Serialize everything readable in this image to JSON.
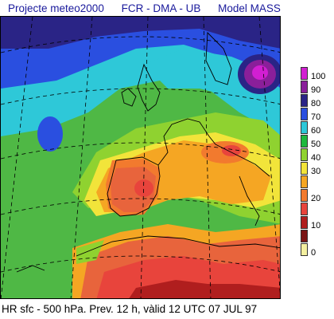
{
  "header": {
    "project": "Projecte meteo2000",
    "institution": "FCR - DMA - UB",
    "model": "Model  MASS"
  },
  "map": {
    "field": "relative humidity",
    "region": "Western Europe and North Africa",
    "colors": {
      "background_field": "#4fb845",
      "land_dry": "#e8643c",
      "coastline": "#000000",
      "graticule": "#000000"
    }
  },
  "legend": {
    "items": [
      {
        "label": "100",
        "color": "#d21fd2"
      },
      {
        "label": "90",
        "color": "#8a1f9a"
      },
      {
        "label": "80",
        "color": "#2a2486"
      },
      {
        "label": "70",
        "color": "#2a4fe0"
      },
      {
        "label": "60",
        "color": "#2ec8d8"
      },
      {
        "label": "50",
        "color": "#1fb83e"
      },
      {
        "label": "40",
        "color": "#8fd230"
      },
      {
        "label": "30",
        "color": "#f2e43a"
      },
      {
        "label": "",
        "color": "#f5a623"
      },
      {
        "label": "20",
        "color": "#f27a2e"
      },
      {
        "label": "",
        "color": "#e8443c"
      },
      {
        "label": "10",
        "color": "#b01e1e"
      },
      {
        "label": "",
        "color": "#7a1414"
      },
      {
        "label": "0",
        "color": "#f4f0a0"
      }
    ]
  },
  "footer": {
    "text": "HR sfc - 500 hPa.     Prev. 12 h, vàlid 12 UTC 07 JUL 97"
  }
}
